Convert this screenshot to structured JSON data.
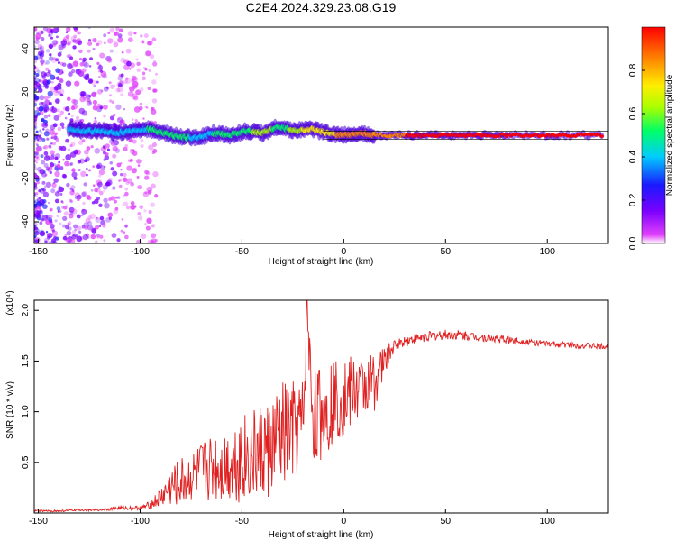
{
  "figure_title": "C2E4.2024.329.23.08.G19",
  "chart_data": [
    {
      "type": "heatmap",
      "xlabel": "Height of straight line (km)",
      "ylabel": "Frequency (Hz)",
      "xlim": [
        -152,
        130
      ],
      "ylim": [
        -50,
        50
      ],
      "x_ticks": [
        -150,
        -100,
        -50,
        0,
        50,
        100
      ],
      "y_ticks": [
        -40,
        -20,
        0,
        20,
        40
      ],
      "x_tick_labels": [
        "-150",
        "-100",
        "-50",
        "0",
        "50",
        "100"
      ],
      "y_tick_labels": [
        "-40",
        "-20",
        "0",
        "20",
        "40"
      ],
      "colorbar": {
        "label": "Normalized spectral amplitude",
        "range": [
          0,
          1
        ],
        "ticks": [
          0.0,
          0.2,
          0.4,
          0.6,
          0.8
        ],
        "tick_labels": [
          "0.0",
          "0.2",
          "0.4",
          "0.6",
          "0.8"
        ],
        "colormap": [
          "#ffffff",
          "#e040fb",
          "#7a00ff",
          "#1a1aff",
          "#00ccff",
          "#00ff66",
          "#aaff00",
          "#ffee00",
          "#ff8800",
          "#ff0000"
        ]
      },
      "ridge": [
        {
          "x": -135,
          "f": 3,
          "a": 0.45
        },
        {
          "x": -128,
          "f": 2,
          "a": 0.4
        },
        {
          "x": -120,
          "f": 2,
          "a": 0.42
        },
        {
          "x": -112,
          "f": 1,
          "a": 0.45
        },
        {
          "x": -104,
          "f": 2,
          "a": 0.48
        },
        {
          "x": -96,
          "f": 3,
          "a": 0.5
        },
        {
          "x": -88,
          "f": 1,
          "a": 0.5
        },
        {
          "x": -80,
          "f": -1,
          "a": 0.52
        },
        {
          "x": -72,
          "f": -1,
          "a": 0.48
        },
        {
          "x": -64,
          "f": 1,
          "a": 0.5
        },
        {
          "x": -56,
          "f": 0,
          "a": 0.52
        },
        {
          "x": -48,
          "f": 2,
          "a": 0.55
        },
        {
          "x": -40,
          "f": 1,
          "a": 0.7
        },
        {
          "x": -32,
          "f": 4,
          "a": 0.55
        },
        {
          "x": -24,
          "f": 2,
          "a": 0.65
        },
        {
          "x": -16,
          "f": 3,
          "a": 0.8
        },
        {
          "x": -8,
          "f": 1,
          "a": 0.75
        },
        {
          "x": 0,
          "f": 0,
          "a": 0.9
        },
        {
          "x": 8,
          "f": 1,
          "a": 0.88
        },
        {
          "x": 16,
          "f": 0,
          "a": 0.85
        },
        {
          "x": 24,
          "f": 0,
          "a": 0.92
        },
        {
          "x": 32,
          "f": 0,
          "a": 0.95
        },
        {
          "x": 40,
          "f": 0,
          "a": 0.95
        },
        {
          "x": 50,
          "f": 0,
          "a": 0.95
        },
        {
          "x": 60,
          "f": 0,
          "a": 0.97
        },
        {
          "x": 70,
          "f": 0,
          "a": 0.97
        },
        {
          "x": 80,
          "f": 0,
          "a": 0.98
        },
        {
          "x": 95,
          "f": 0,
          "a": 0.98
        },
        {
          "x": 110,
          "f": 0,
          "a": 0.99
        },
        {
          "x": 128,
          "f": 0,
          "a": 0.99
        }
      ]
    },
    {
      "type": "line",
      "xlabel": "Height of straight line (km)",
      "ylabel": "SNR (10 * v/v)",
      "yscale_label": "(x10⁴)",
      "xlim": [
        -152,
        130
      ],
      "ylim": [
        0.0,
        2.1
      ],
      "x_ticks": [
        -150,
        -100,
        -50,
        0,
        50,
        100
      ],
      "y_ticks": [
        0.5,
        1.0,
        1.5,
        2.0
      ],
      "x_tick_labels": [
        "-150",
        "-100",
        "-50",
        "0",
        "50",
        "100"
      ],
      "y_tick_labels": [
        "0.5",
        "1.0",
        "1.5",
        "2.0"
      ],
      "series": [
        {
          "color": "#e02020",
          "x": [
            -152,
            -140,
            -130,
            -120,
            -110,
            -100,
            -95,
            -90,
            -85,
            -80,
            -75,
            -70,
            -65,
            -60,
            -55,
            -50,
            -45,
            -40,
            -35,
            -30,
            -25,
            -20,
            -18,
            -15,
            -10,
            -5,
            0,
            5,
            10,
            15,
            20,
            25,
            30,
            35,
            40,
            45,
            50,
            55,
            60,
            65,
            70,
            75,
            80,
            90,
            100,
            110,
            120,
            130
          ],
          "y": [
            0.02,
            0.02,
            0.03,
            0.03,
            0.05,
            0.05,
            0.08,
            0.15,
            0.25,
            0.3,
            0.35,
            0.4,
            0.45,
            0.45,
            0.5,
            0.55,
            0.55,
            0.6,
            0.65,
            0.75,
            0.8,
            0.85,
            1.9,
            0.95,
            1.0,
            1.1,
            1.15,
            1.2,
            1.25,
            1.3,
            1.5,
            1.65,
            1.7,
            1.72,
            1.74,
            1.75,
            1.76,
            1.76,
            1.75,
            1.74,
            1.73,
            1.72,
            1.71,
            1.69,
            1.67,
            1.66,
            1.65,
            1.64
          ],
          "noise": [
            0.01,
            0.01,
            0.01,
            0.01,
            0.02,
            0.02,
            0.04,
            0.1,
            0.2,
            0.25,
            0.25,
            0.3,
            0.35,
            0.35,
            0.4,
            0.45,
            0.45,
            0.5,
            0.5,
            0.55,
            0.5,
            0.5,
            0.2,
            0.5,
            0.45,
            0.45,
            0.4,
            0.35,
            0.3,
            0.3,
            0.15,
            0.06,
            0.05,
            0.05,
            0.05,
            0.05,
            0.05,
            0.05,
            0.05,
            0.04,
            0.04,
            0.04,
            0.04,
            0.03,
            0.03,
            0.03,
            0.03,
            0.03
          ]
        }
      ]
    }
  ]
}
